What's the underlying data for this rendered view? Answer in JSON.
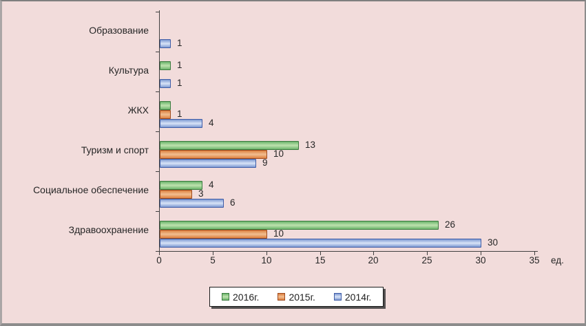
{
  "chart_data": {
    "type": "bar",
    "orientation": "horizontal",
    "title": "",
    "unit_label": "ед.",
    "xlim": [
      0,
      35
    ],
    "xticks": [
      0,
      5,
      10,
      15,
      20,
      25,
      30,
      35
    ],
    "grid": false,
    "legend_position": "bottom",
    "plot_background": "#f2dcdb",
    "categories": [
      "Образование",
      "Культура",
      "ЖКХ",
      "Туризм и спорт",
      "Социальное обеспечение",
      "Здравоохранение"
    ],
    "series": [
      {
        "name": "2016г.",
        "values": [
          0,
          1,
          1,
          13,
          4,
          26
        ],
        "data_labels": [
          "",
          "1",
          "",
          "13",
          "4",
          "26"
        ],
        "color": {
          "border": "#3a7a3e",
          "mid": "#6cb56c",
          "light": "#bee2ae"
        }
      },
      {
        "name": "2015г.",
        "values": [
          0,
          0,
          1,
          10,
          3,
          10
        ],
        "data_labels": [
          "",
          "",
          "1",
          "10",
          "3",
          "10"
        ],
        "color": {
          "border": "#9e4a1e",
          "mid": "#dd8040",
          "light": "#f2be90"
        }
      },
      {
        "name": "2014г.",
        "values": [
          1,
          1,
          4,
          9,
          6,
          30
        ],
        "data_labels": [
          "1",
          "1",
          "4",
          "9",
          "6",
          "30"
        ],
        "color": {
          "border": "#3e5ca6",
          "mid": "#7e9ad2",
          "light": "#d8e3f7"
        }
      }
    ],
    "axis_color": "#3f3f3f",
    "label_color": "#262626"
  }
}
